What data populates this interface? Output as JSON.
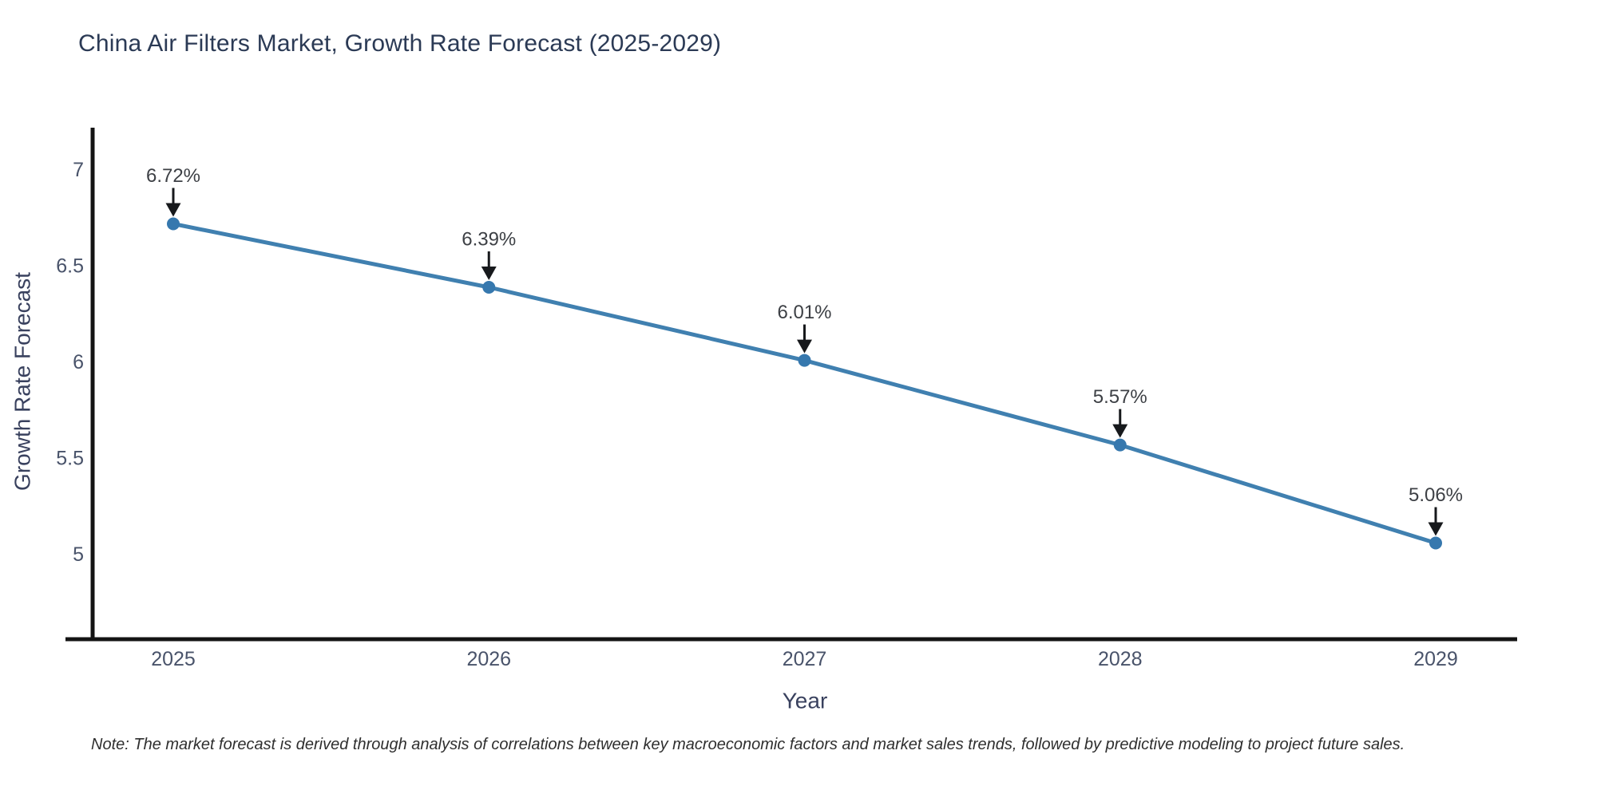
{
  "chart_data": {
    "type": "line",
    "title": "China Air Filters Market, Growth Rate Forecast (2025-2029)",
    "xlabel": "Year",
    "ylabel": "Growth Rate Forecast",
    "x": [
      "2025",
      "2026",
      "2027",
      "2028",
      "2029"
    ],
    "series": [
      {
        "name": "Growth Rate Forecast",
        "values": [
          6.72,
          6.39,
          6.01,
          5.57,
          5.06
        ]
      }
    ],
    "point_labels": [
      "6.72%",
      "6.39%",
      "6.01%",
      "5.57%",
      "5.06%"
    ],
    "yticks": [
      7,
      6.5,
      6,
      5.5,
      5
    ],
    "ytick_labels": [
      "7",
      "6.5",
      "6",
      "5.5",
      "5"
    ],
    "ylim": [
      4.56,
      7.22
    ],
    "grid": false,
    "legend": "none",
    "marker": "circle",
    "annotation_style": "down-arrow-to-point"
  },
  "note": {
    "text": "Note: The market forecast is derived through analysis of correlations between key macroeconomic factors and market sales trends, followed by predictive modeling to project future sales."
  },
  "colors": {
    "background": "#ffffff",
    "title_text": "#2b3a55",
    "axis_title_text": "#39415e",
    "tick_text": "#49536a",
    "axis_line": "#141414",
    "series_line": "#4080b0",
    "marker_fill": "#3678ae",
    "annotation_text": "#3d4045",
    "arrow": "#17191c",
    "note_text": "#2f2f2f"
  }
}
